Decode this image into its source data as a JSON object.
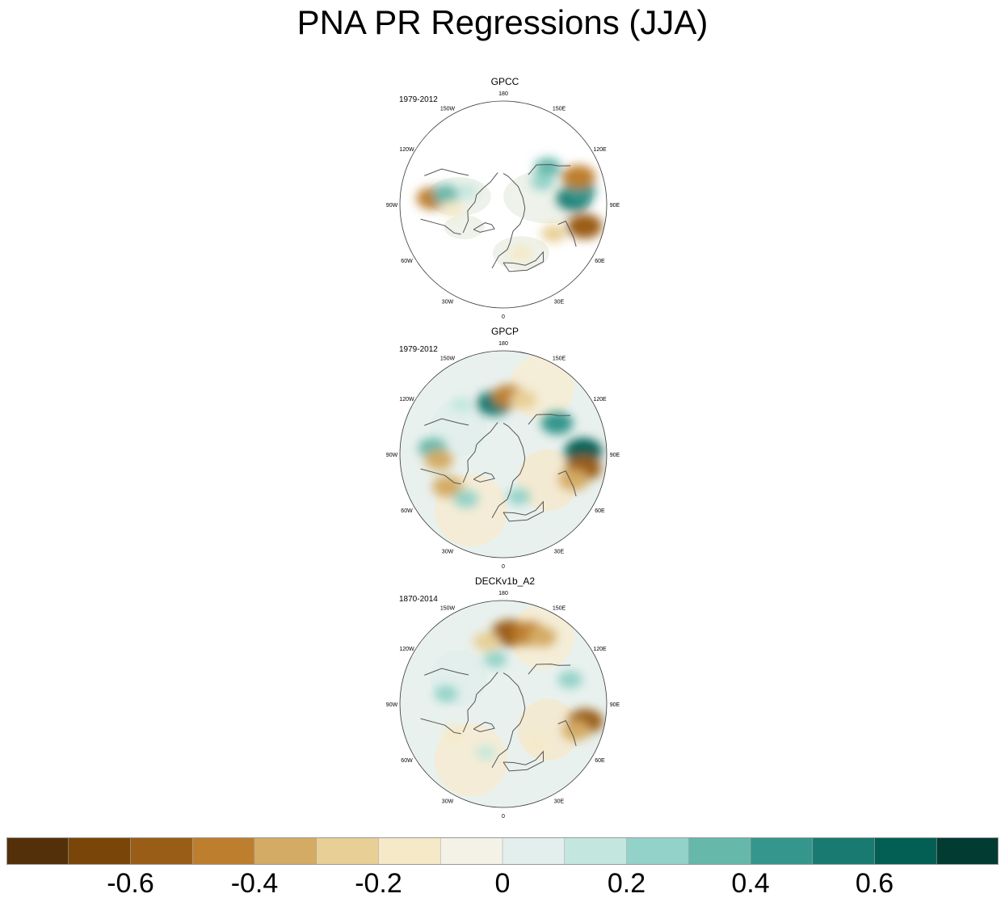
{
  "chart_data": {
    "type": "heatmap",
    "title": "PNA PR Regressions (JJA)",
    "projection": "north polar stereographic",
    "longitude_labels": [
      "180",
      "150E",
      "120E",
      "90E",
      "60E",
      "30E",
      "0",
      "30W",
      "60W",
      "90W",
      "120W",
      "150W"
    ],
    "panels": [
      {
        "title": "GPCC",
        "period": "1979-2012",
        "features": [
          {
            "lon": 95,
            "lat": 35,
            "value": 0.55
          },
          {
            "lon": 100,
            "lat": 30,
            "value": 0.45
          },
          {
            "lon": 110,
            "lat": 28,
            "value": -0.5
          },
          {
            "lon": 75,
            "lat": 25,
            "value": -0.55
          },
          {
            "lon": 130,
            "lat": 45,
            "value": 0.3
          },
          {
            "lon": 120,
            "lat": 55,
            "value": 0.2
          },
          {
            "lon": 60,
            "lat": 45,
            "value": -0.25
          },
          {
            "lon": 20,
            "lat": 50,
            "value": -0.2
          },
          {
            "lon": -95,
            "lat": 35,
            "value": -0.45
          },
          {
            "lon": -100,
            "lat": 45,
            "value": 0.3
          },
          {
            "lon": -85,
            "lat": 50,
            "value": -0.2
          },
          {
            "lon": -110,
            "lat": 60,
            "value": 0.15
          }
        ]
      },
      {
        "title": "GPCP",
        "period": "1979-2012",
        "features": [
          {
            "lon": -170,
            "lat": 50,
            "value": 0.55
          },
          {
            "lon": 175,
            "lat": 45,
            "value": -0.45
          },
          {
            "lon": 160,
            "lat": 45,
            "value": -0.3
          },
          {
            "lon": 120,
            "lat": 42,
            "value": 0.45
          },
          {
            "lon": 92,
            "lat": 28,
            "value": 0.6
          },
          {
            "lon": 80,
            "lat": 27,
            "value": -0.55
          },
          {
            "lon": 70,
            "lat": 32,
            "value": -0.4
          },
          {
            "lon": -95,
            "lat": 35,
            "value": 0.35
          },
          {
            "lon": -85,
            "lat": 40,
            "value": -0.35
          },
          {
            "lon": -60,
            "lat": 40,
            "value": -0.4
          },
          {
            "lon": -40,
            "lat": 45,
            "value": 0.25
          },
          {
            "lon": 20,
            "lat": 55,
            "value": 0.2
          },
          {
            "lon": -140,
            "lat": 40,
            "value": 0.15
          }
        ]
      },
      {
        "title": "DECKv1b_A2",
        "period": "1870-2014",
        "features": [
          {
            "lon": 175,
            "lat": 35,
            "value": -0.6
          },
          {
            "lon": 160,
            "lat": 32,
            "value": -0.5
          },
          {
            "lon": -165,
            "lat": 40,
            "value": -0.3
          },
          {
            "lon": 150,
            "lat": 30,
            "value": -0.35
          },
          {
            "lon": 78,
            "lat": 25,
            "value": -0.55
          },
          {
            "lon": 70,
            "lat": 30,
            "value": -0.35
          },
          {
            "lon": 110,
            "lat": 35,
            "value": 0.25
          },
          {
            "lon": -170,
            "lat": 55,
            "value": 0.2
          },
          {
            "lon": -100,
            "lat": 45,
            "value": 0.2
          },
          {
            "lon": -60,
            "lat": 45,
            "value": -0.15
          },
          {
            "lon": 40,
            "lat": 50,
            "value": -0.15
          },
          {
            "lon": -20,
            "lat": 50,
            "value": 0.1
          }
        ]
      }
    ],
    "colorbar": {
      "levels": [
        -0.7,
        -0.6,
        -0.5,
        -0.4,
        -0.3,
        -0.2,
        -0.1,
        0,
        0.1,
        0.2,
        0.3,
        0.4,
        0.5,
        0.6,
        0.7
      ],
      "colors": [
        "#54300a",
        "#7a4509",
        "#9a5d17",
        "#bd7f2e",
        "#d4ab64",
        "#e8cf95",
        "#f5e9c7",
        "#f4f1e6",
        "#e2efec",
        "#c3e7de",
        "#93d2c8",
        "#66b8ab",
        "#34968c",
        "#187a70",
        "#035f53",
        "#023b31"
      ],
      "tick_labels": [
        "-0.6",
        "-0.4",
        "-0.2",
        "0",
        "0.2",
        "0.4",
        "0.6"
      ],
      "tick_values": [
        -0.6,
        -0.4,
        -0.2,
        0,
        0.2,
        0.4,
        0.6
      ]
    }
  }
}
